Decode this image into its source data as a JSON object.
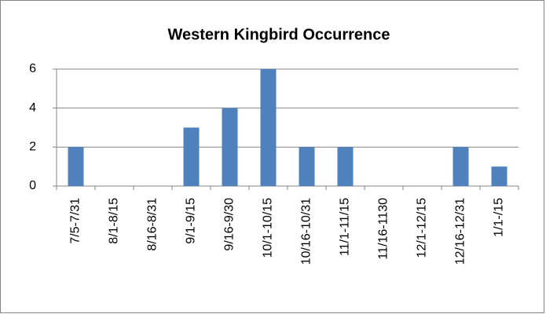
{
  "chart_data": {
    "type": "bar",
    "title": "Western Kingbird Occurrence",
    "categories": [
      "7/5-7/31",
      "8/1-8/15",
      "8/16-8/31",
      "9/1-9/15",
      "9/16-9/30",
      "10/1-10/15",
      "10/16-10/31",
      "11/1-11/15",
      "11/16-1130",
      "12/1-12/15",
      "12/16-12/31",
      "1/1-/15"
    ],
    "values": [
      2,
      0,
      0,
      3,
      4,
      6,
      2,
      2,
      0,
      0,
      2,
      1
    ],
    "color": "#4f81bd",
    "ylim": [
      0,
      6
    ],
    "yticks": [
      0,
      2,
      4,
      6
    ],
    "grid": true
  }
}
